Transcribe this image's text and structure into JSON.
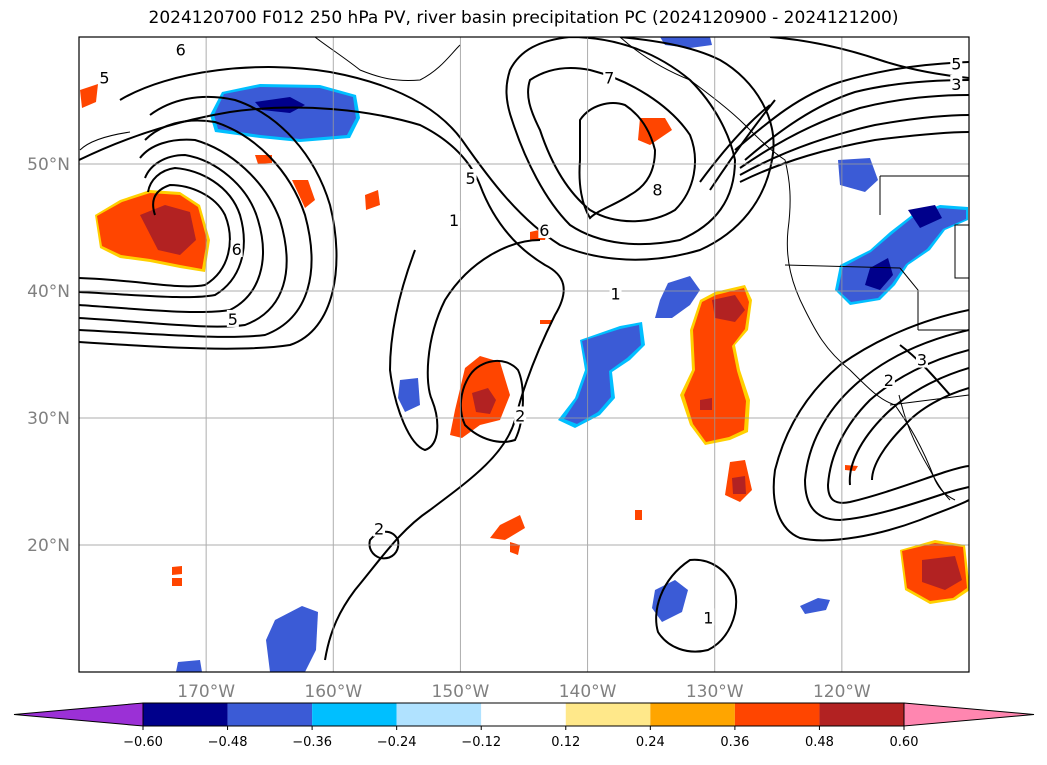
{
  "title": "2024120700 F012 250 hPa PV, river basin precipitation PC (2024120900 - 2024121200)",
  "map_data": {
    "projection": "PlateCarree",
    "lon_range": [
      -180,
      -110
    ],
    "lat_range": [
      10,
      60
    ],
    "gridlines": true,
    "lat_labels": [
      {
        "lat": 50,
        "label": "50°N"
      },
      {
        "lat": 40,
        "label": "40°N"
      },
      {
        "lat": 30,
        "label": "30°N"
      },
      {
        "lat": 20,
        "label": "20°N"
      }
    ],
    "lon_labels": [
      {
        "lon": -170,
        "label": "170°W"
      },
      {
        "lon": -160,
        "label": "160°W"
      },
      {
        "lon": -150,
        "label": "150°W"
      },
      {
        "lon": -140,
        "label": "140°W"
      },
      {
        "lon": -130,
        "label": "130°W"
      },
      {
        "lon": -120,
        "label": "120°W"
      }
    ],
    "pv_contour_labels": [
      {
        "text": "6",
        "lon": -172,
        "lat": 59
      },
      {
        "text": "5",
        "lon": -178,
        "lat": 56.8
      },
      {
        "text": "7",
        "lon": -138.3,
        "lat": 56.8
      },
      {
        "text": "5",
        "lon": -111,
        "lat": 57.9
      },
      {
        "text": "3",
        "lon": -111,
        "lat": 56.3
      },
      {
        "text": "5",
        "lon": -149.2,
        "lat": 48.9
      },
      {
        "text": "8",
        "lon": -134.5,
        "lat": 48
      },
      {
        "text": "1",
        "lon": -150.5,
        "lat": 45.6
      },
      {
        "text": "6",
        "lon": -143.4,
        "lat": 44.8
      },
      {
        "text": "6",
        "lon": -167.6,
        "lat": 43.3
      },
      {
        "text": "5",
        "lon": -167.9,
        "lat": 37.8
      },
      {
        "text": "1",
        "lon": -137.8,
        "lat": 39.8
      },
      {
        "text": "2",
        "lon": -145.3,
        "lat": 30.2
      },
      {
        "text": "3",
        "lon": -113.7,
        "lat": 34.6
      },
      {
        "text": "2",
        "lon": -116.3,
        "lat": 33
      },
      {
        "text": "1",
        "lon": -130.5,
        "lat": 14.3
      },
      {
        "text": "2",
        "lon": -156.4,
        "lat": 21.3
      }
    ],
    "precip_regions": [
      {
        "lon": -173.5,
        "lat": 43.8,
        "level": 0.48,
        "sign": "positive"
      },
      {
        "lon": -163,
        "lat": 54.5,
        "level": -0.48,
        "sign": "negative"
      },
      {
        "lon": -148.5,
        "lat": 31.8,
        "level": 0.48,
        "sign": "positive"
      },
      {
        "lon": -131.5,
        "lat": 38.5,
        "level": 0.48,
        "sign": "positive"
      },
      {
        "lon": -127,
        "lat": 25,
        "level": 0.48,
        "sign": "positive"
      },
      {
        "lon": -114,
        "lat": 17.5,
        "level": 0.48,
        "sign": "positive"
      },
      {
        "lon": -117.8,
        "lat": 41,
        "level": -0.6,
        "sign": "negative"
      },
      {
        "lon": -117,
        "lat": 46.5,
        "level": -0.6,
        "sign": "negative"
      },
      {
        "lon": -138.5,
        "lat": 34,
        "level": -0.36,
        "sign": "negative"
      },
      {
        "lon": -163.5,
        "lat": 13,
        "level": -0.36,
        "sign": "negative"
      }
    ]
  },
  "colorbar": {
    "colors": [
      "#9b30d6",
      "#00008b",
      "#3b5bd6",
      "#00bfff",
      "#b0e2ff",
      "#ffffff",
      "#ffe88a",
      "#ffa500",
      "#ff4500",
      "#b22222",
      "#ff86b0"
    ],
    "ticks": [
      "−0.60",
      "−0.48",
      "−0.36",
      "−0.24",
      "−0.12",
      "0.12",
      "0.24",
      "0.36",
      "0.48",
      "0.60"
    ]
  }
}
